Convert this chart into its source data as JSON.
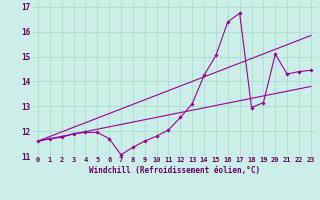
{
  "xlabel": "Windchill (Refroidissement éolien,°C)",
  "background_color": "#cceee8",
  "grid_color": "#aaddcc",
  "line_color": "#990099",
  "xlim": [
    -0.5,
    23.5
  ],
  "ylim": [
    11,
    17.2
  ],
  "yticks": [
    11,
    12,
    13,
    14,
    15,
    16,
    17
  ],
  "xticks": [
    0,
    1,
    2,
    3,
    4,
    5,
    6,
    7,
    8,
    9,
    10,
    11,
    12,
    13,
    14,
    15,
    16,
    17,
    18,
    19,
    20,
    21,
    22,
    23
  ],
  "series1_x": [
    0,
    1,
    2,
    3,
    4,
    5,
    6,
    7,
    8,
    9,
    10,
    11,
    12,
    13,
    14,
    15,
    16,
    17,
    18,
    19,
    20,
    21,
    22,
    23
  ],
  "series1_y": [
    11.6,
    11.7,
    11.75,
    11.9,
    11.95,
    11.95,
    11.7,
    11.05,
    11.35,
    11.6,
    11.8,
    12.05,
    12.55,
    13.1,
    14.25,
    15.05,
    16.4,
    16.75,
    12.95,
    13.15,
    15.1,
    14.3,
    14.4,
    14.45
  ],
  "series2_x": [
    0,
    23
  ],
  "series2_y": [
    11.6,
    13.8
  ],
  "series3_x": [
    0,
    23
  ],
  "series3_y": [
    11.6,
    15.85
  ],
  "xlabel_fontsize": 5.5,
  "tick_fontsize": 5.5
}
